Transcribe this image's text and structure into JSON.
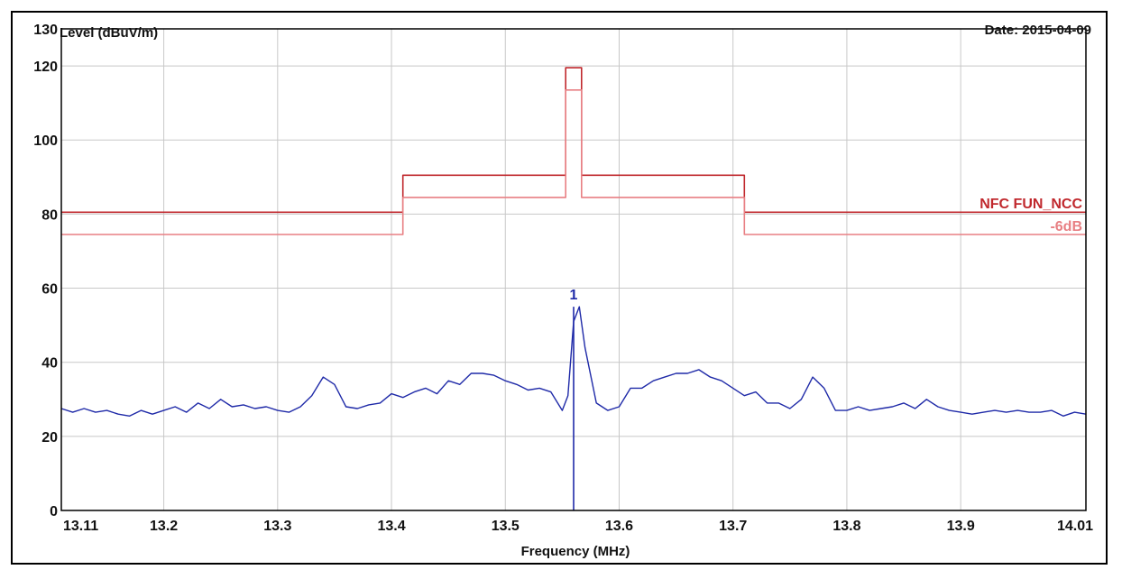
{
  "chart_data": {
    "type": "line",
    "ylabel": "Level (dBuV/m)",
    "xlabel": "Frequency (MHz)",
    "date_text": "Date: 2015-04-09",
    "xlim": [
      13.11,
      14.01
    ],
    "ylim": [
      0,
      130
    ],
    "grid": true,
    "x_ticks": [
      13.11,
      13.2,
      13.3,
      13.4,
      13.5,
      13.6,
      13.7,
      13.8,
      13.9,
      14.01
    ],
    "x_tick_labels": [
      "13.11",
      "13.2",
      "13.3",
      "13.4",
      "13.5",
      "13.6",
      "13.7",
      "13.8",
      "13.9",
      "14.01"
    ],
    "y_ticks": [
      0,
      20,
      40,
      60,
      80,
      100,
      120,
      130
    ],
    "y_tick_labels": [
      "0",
      "20",
      "40",
      "60",
      "80",
      "100",
      "120",
      "130"
    ],
    "colors": {
      "limit": "#c0282d",
      "limit_6db": "#e87f83",
      "trace": "#1f2aa8",
      "grid": "#c8c8c8"
    },
    "series": [
      {
        "name": "NFC FUN_NCC",
        "style": "step",
        "x": [
          13.11,
          13.41,
          13.41,
          13.553,
          13.553,
          13.567,
          13.567,
          13.71,
          13.71,
          14.01
        ],
        "y": [
          80.5,
          80.5,
          90.5,
          90.5,
          119.5,
          119.5,
          90.5,
          90.5,
          80.5,
          80.5
        ]
      },
      {
        "name": "-6dB",
        "style": "step",
        "x": [
          13.11,
          13.41,
          13.41,
          13.553,
          13.553,
          13.567,
          13.567,
          13.71,
          13.71,
          14.01
        ],
        "y": [
          74.5,
          74.5,
          84.5,
          84.5,
          113.5,
          113.5,
          84.5,
          84.5,
          74.5,
          74.5
        ]
      },
      {
        "name": "",
        "style": "line",
        "x": [
          13.11,
          13.12,
          13.13,
          13.14,
          13.15,
          13.16,
          13.17,
          13.18,
          13.19,
          13.2,
          13.21,
          13.22,
          13.23,
          13.24,
          13.25,
          13.26,
          13.27,
          13.28,
          13.29,
          13.3,
          13.31,
          13.32,
          13.33,
          13.34,
          13.35,
          13.36,
          13.37,
          13.38,
          13.39,
          13.4,
          13.41,
          13.42,
          13.43,
          13.44,
          13.45,
          13.46,
          13.47,
          13.48,
          13.49,
          13.5,
          13.51,
          13.52,
          13.53,
          13.54,
          13.55,
          13.555,
          13.56,
          13.565,
          13.57,
          13.58,
          13.59,
          13.6,
          13.61,
          13.62,
          13.63,
          13.64,
          13.65,
          13.66,
          13.67,
          13.68,
          13.69,
          13.7,
          13.71,
          13.72,
          13.73,
          13.74,
          13.75,
          13.76,
          13.77,
          13.78,
          13.79,
          13.8,
          13.81,
          13.82,
          13.83,
          13.84,
          13.85,
          13.86,
          13.87,
          13.88,
          13.89,
          13.9,
          13.91,
          13.92,
          13.93,
          13.94,
          13.95,
          13.96,
          13.97,
          13.98,
          13.99,
          14.0,
          14.01
        ],
        "y": [
          27.5,
          26.5,
          27.5,
          26.5,
          27,
          26,
          25.5,
          27,
          26,
          27,
          28,
          26.5,
          29,
          27.5,
          30,
          28,
          28.5,
          27.5,
          28,
          27,
          26.5,
          28,
          31,
          36,
          34,
          28,
          27.5,
          28.5,
          29,
          31.5,
          30.5,
          32,
          33,
          31.5,
          35,
          34,
          37,
          37,
          36.5,
          35,
          34,
          32.5,
          33,
          32,
          27,
          31,
          51,
          55,
          44,
          29,
          27,
          28,
          33,
          33,
          35,
          36,
          37,
          37,
          38,
          36,
          35,
          33,
          31,
          32,
          29,
          29,
          27.5,
          30,
          36,
          33,
          27,
          27,
          28,
          27,
          27.5,
          28,
          29,
          27.5,
          30,
          28,
          27,
          26.5,
          26,
          26.5,
          27,
          26.5,
          27,
          26.5,
          26.5,
          27,
          25.5,
          26.5,
          26
        ]
      }
    ],
    "markers": [
      {
        "label": "1",
        "x": 13.56,
        "y": 55
      }
    ]
  }
}
